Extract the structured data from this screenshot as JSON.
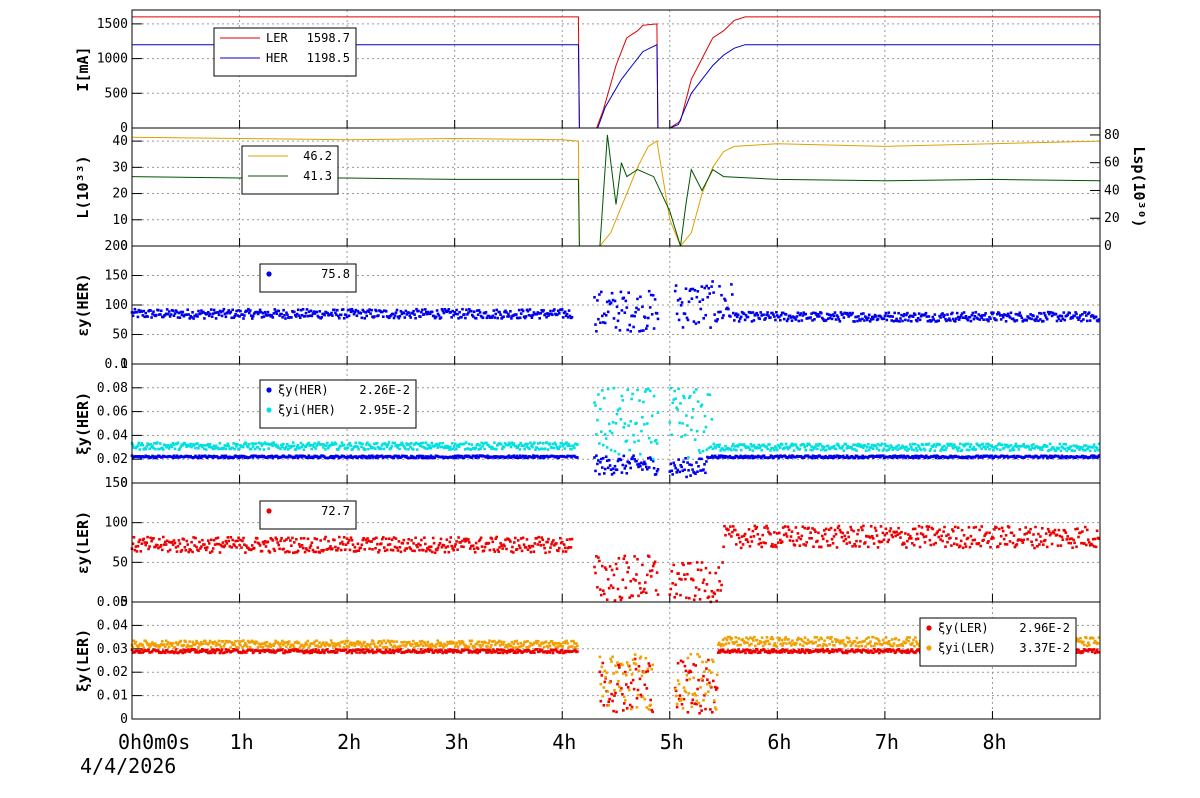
{
  "chart_data": [
    {
      "id": "current",
      "type": "line",
      "ylabel": "I[mA]",
      "ylim": [
        0,
        1700
      ],
      "yticks": [
        0,
        500,
        1000,
        1500
      ],
      "legend": {
        "placement": "top-left",
        "entries": [
          {
            "name": "LER",
            "value": "1598.7",
            "color": "#e00000"
          },
          {
            "name": "HER",
            "value": "1198.5",
            "color": "#0000cc"
          }
        ]
      },
      "series": [
        {
          "name": "LER",
          "color": "#e00000",
          "points": [
            [
              0,
              1600
            ],
            [
              4.15,
              1600
            ],
            [
              4.16,
              0
            ],
            [
              4.32,
              0
            ],
            [
              4.38,
              250
            ],
            [
              4.5,
              900
            ],
            [
              4.55,
              1100
            ],
            [
              4.6,
              1300
            ],
            [
              4.7,
              1400
            ],
            [
              4.75,
              1480
            ],
            [
              4.88,
              1500
            ],
            [
              4.89,
              0
            ],
            [
              5.0,
              0
            ],
            [
              5.1,
              100
            ],
            [
              5.2,
              700
            ],
            [
              5.3,
              1000
            ],
            [
              5.4,
              1300
            ],
            [
              5.5,
              1400
            ],
            [
              5.6,
              1550
            ],
            [
              5.7,
              1600
            ],
            [
              9.0,
              1600
            ]
          ]
        },
        {
          "name": "HER",
          "color": "#0000cc",
          "points": [
            [
              0,
              1200
            ],
            [
              4.15,
              1200
            ],
            [
              4.16,
              0
            ],
            [
              4.33,
              0
            ],
            [
              4.4,
              300
            ],
            [
              4.55,
              700
            ],
            [
              4.65,
              900
            ],
            [
              4.75,
              1100
            ],
            [
              4.88,
              1200
            ],
            [
              4.89,
              0
            ],
            [
              5.0,
              0
            ],
            [
              5.08,
              50
            ],
            [
              5.2,
              500
            ],
            [
              5.3,
              700
            ],
            [
              5.4,
              900
            ],
            [
              5.5,
              1050
            ],
            [
              5.6,
              1150
            ],
            [
              5.7,
              1200
            ],
            [
              9.0,
              1200
            ]
          ]
        }
      ]
    },
    {
      "id": "lumi",
      "type": "line",
      "ylabel": "L(10³³)",
      "ylabel_right": "Lsp(10³⁰)",
      "ylim": [
        0,
        45
      ],
      "yticks": [
        0,
        10,
        20,
        30,
        40
      ],
      "ylim_right": [
        0,
        85
      ],
      "yticks_right": [
        0,
        20,
        40,
        60,
        80
      ],
      "legend": {
        "placement": "top-left",
        "entries": [
          {
            "name": "",
            "value": "46.2",
            "color": "#e0a000"
          },
          {
            "name": "",
            "value": "41.3",
            "color": "#005500"
          }
        ]
      },
      "series": [
        {
          "name": "",
          "color": "#e0a000",
          "axis": "left",
          "points": [
            [
              0,
              41.5
            ],
            [
              1,
              41
            ],
            [
              2,
              40.5
            ],
            [
              3,
              41
            ],
            [
              4,
              40.5
            ],
            [
              4.15,
              40
            ],
            [
              4.16,
              0
            ],
            [
              4.35,
              0
            ],
            [
              4.45,
              5
            ],
            [
              4.6,
              20
            ],
            [
              4.7,
              30
            ],
            [
              4.8,
              38
            ],
            [
              4.88,
              40
            ],
            [
              5.0,
              10
            ],
            [
              5.1,
              0
            ],
            [
              5.2,
              5
            ],
            [
              5.3,
              20
            ],
            [
              5.4,
              30
            ],
            [
              5.5,
              36
            ],
            [
              5.6,
              38
            ],
            [
              6,
              39
            ],
            [
              7,
              38
            ],
            [
              8,
              39
            ],
            [
              9,
              40
            ]
          ]
        },
        {
          "name": "",
          "color": "#005500",
          "axis": "right",
          "points": [
            [
              0,
              50
            ],
            [
              1,
              49
            ],
            [
              2,
              49
            ],
            [
              3,
              48
            ],
            [
              4,
              48
            ],
            [
              4.15,
              48
            ],
            [
              4.16,
              0
            ],
            [
              4.35,
              0
            ],
            [
              4.42,
              80
            ],
            [
              4.5,
              30
            ],
            [
              4.55,
              60
            ],
            [
              4.6,
              50
            ],
            [
              4.7,
              55
            ],
            [
              4.85,
              50
            ],
            [
              5.0,
              25
            ],
            [
              5.1,
              0
            ],
            [
              5.15,
              30
            ],
            [
              5.2,
              55
            ],
            [
              5.3,
              40
            ],
            [
              5.4,
              55
            ],
            [
              5.5,
              50
            ],
            [
              6,
              48
            ],
            [
              7,
              47
            ],
            [
              8,
              48
            ],
            [
              9,
              47
            ]
          ]
        }
      ]
    },
    {
      "id": "emit-her",
      "type": "scatter",
      "ylabel": "εy(HER)",
      "ylim": [
        0,
        200
      ],
      "yticks": [
        0,
        50,
        100,
        150,
        200
      ],
      "legend": {
        "placement": "top-left",
        "entries": [
          {
            "name": "",
            "value": "75.8",
            "color": "#0000ee"
          }
        ]
      },
      "series": [
        {
          "name": "",
          "color": "#0000ee",
          "bands": [
            [
              0,
              4.1,
              85,
              8
            ],
            [
              4.3,
              4.9,
              90,
              35
            ],
            [
              5.05,
              5.6,
              100,
              40
            ],
            [
              5.6,
              9.0,
              80,
              8
            ]
          ]
        }
      ]
    },
    {
      "id": "xi-her",
      "type": "scatter",
      "ylabel": "ξy(HER)",
      "ylim": [
        0,
        0.1
      ],
      "yticks": [
        0,
        0.02,
        0.04,
        0.06,
        0.08,
        0.1
      ],
      "legend": {
        "placement": "top-left",
        "entries": [
          {
            "name": "ξy(HER)",
            "value": "2.26E-2",
            "color": "#0000ee"
          },
          {
            "name": "ξyi(HER)",
            "value": "2.95E-2",
            "color": "#00e0e0"
          }
        ]
      },
      "series": [
        {
          "name": "ξy(HER)",
          "color": "#0000ee",
          "bands": [
            [
              0,
              4.15,
              0.022,
              0.001
            ],
            [
              4.3,
              4.9,
              0.015,
              0.008
            ],
            [
              5.0,
              5.35,
              0.013,
              0.008
            ],
            [
              5.35,
              9.0,
              0.022,
              0.001
            ]
          ]
        },
        {
          "name": "ξyi(HER)",
          "color": "#00e0e0",
          "bands": [
            [
              0,
              4.15,
              0.031,
              0.003
            ],
            [
              4.3,
              4.9,
              0.05,
              0.03
            ],
            [
              5.0,
              5.4,
              0.05,
              0.03
            ],
            [
              5.4,
              9.0,
              0.03,
              0.003
            ]
          ]
        }
      ]
    },
    {
      "id": "emit-ler",
      "type": "scatter",
      "ylabel": "εy(LER)",
      "ylim": [
        0,
        150
      ],
      "yticks": [
        0,
        50,
        100,
        150
      ],
      "legend": {
        "placement": "top-left",
        "entries": [
          {
            "name": "",
            "value": "72.7",
            "color": "#ee0000"
          }
        ]
      },
      "series": [
        {
          "name": "",
          "color": "#ee0000",
          "bands": [
            [
              0,
              4.1,
              72,
              10
            ],
            [
              4.3,
              4.9,
              30,
              30
            ],
            [
              5.0,
              5.5,
              25,
              25
            ],
            [
              5.5,
              9.0,
              82,
              14
            ]
          ]
        }
      ]
    },
    {
      "id": "xi-ler",
      "type": "scatter",
      "ylabel": "ξy(LER)",
      "ylim": [
        0,
        0.05
      ],
      "yticks": [
        0,
        0.01,
        0.02,
        0.03,
        0.04,
        0.05
      ],
      "legend": {
        "placement": "right",
        "entries": [
          {
            "name": "ξy(LER)",
            "value": "2.96E-2",
            "color": "#ee0000"
          },
          {
            "name": "ξyi(LER)",
            "value": "3.37E-2",
            "color": "#f0a000"
          }
        ]
      },
      "series": [
        {
          "name": "ξy(LER)",
          "color": "#ee0000",
          "bands": [
            [
              0,
              4.15,
              0.029,
              0.0008
            ],
            [
              4.35,
              4.85,
              0.015,
              0.012
            ],
            [
              5.05,
              5.45,
              0.014,
              0.012
            ],
            [
              5.45,
              9.0,
              0.029,
              0.0008
            ]
          ]
        },
        {
          "name": "ξyi(LER)",
          "color": "#f0a000",
          "bands": [
            [
              0,
              4.15,
              0.032,
              0.0015
            ],
            [
              4.35,
              4.85,
              0.016,
              0.012
            ],
            [
              5.05,
              5.45,
              0.016,
              0.012
            ],
            [
              5.45,
              9.0,
              0.033,
              0.002
            ]
          ]
        }
      ]
    }
  ],
  "x_axis": {
    "min": 0,
    "max": 9,
    "ticks": [
      {
        "v": 0,
        "label": "0h0m0s"
      },
      {
        "v": 1,
        "label": "1h"
      },
      {
        "v": 2,
        "label": "2h"
      },
      {
        "v": 3,
        "label": "3h"
      },
      {
        "v": 4,
        "label": "4h"
      },
      {
        "v": 5,
        "label": "5h"
      },
      {
        "v": 6,
        "label": "6h"
      },
      {
        "v": 7,
        "label": "7h"
      },
      {
        "v": 8,
        "label": "8h"
      }
    ],
    "date_label": "4/4/2026"
  }
}
